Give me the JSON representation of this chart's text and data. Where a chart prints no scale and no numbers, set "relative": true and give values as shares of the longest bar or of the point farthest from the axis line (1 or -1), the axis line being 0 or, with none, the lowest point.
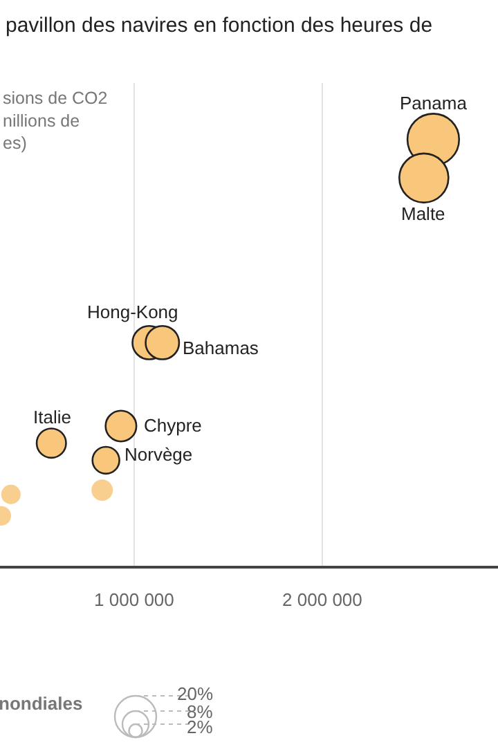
{
  "chart_data": {
    "type": "bubble",
    "title": "pavillon des navires en fonction des heures de",
    "ylabel": "sions de CO2\nnillions de\nes)",
    "legend_title": "nondiales",
    "relative": true,
    "xlim": [
      287000,
      2934000
    ],
    "xticks": [
      {
        "value": 1000000,
        "label": "1 000 000"
      },
      {
        "value": 2000000,
        "label": "2 000 000"
      }
    ],
    "grid": "x",
    "size_legend": [
      {
        "value": 20,
        "label": "20%"
      },
      {
        "value": 8,
        "label": "8%"
      },
      {
        "value": 2,
        "label": "2%"
      }
    ],
    "series": [
      {
        "color": "#f8c77b",
        "line_style": "solid",
        "x": [
          2590000,
          2540000,
          1080000,
          1150000,
          560000,
          930000,
          850000
        ],
        "values": [
          1.0,
          0.91,
          0.525,
          0.525,
          0.29,
          0.33,
          0.25
        ],
        "sizes": [
          31,
          28,
          13,
          13,
          10,
          11,
          8.4
        ]
      },
      {
        "color": "#f8c77b",
        "x": [
          830000,
          345000,
          294000
        ],
        "values": [
          0.18,
          0.17,
          0.12
        ],
        "sizes": [
          5.3,
          4.4,
          4.4
        ]
      }
    ],
    "annotations": [
      {
        "text": "Panama",
        "x": 2590000,
        "y": 1.0
      },
      {
        "text": "Malte",
        "x": 2540000,
        "y": 0.91
      },
      {
        "text": "Hong-Kong",
        "x": 1080000,
        "y": 0.525
      },
      {
        "text": "Bahamas",
        "x": 1150000,
        "y": 0.525
      },
      {
        "text": "Italie",
        "x": 560000,
        "y": 0.29
      },
      {
        "text": "Chypre",
        "x": 930000,
        "y": 0.33
      },
      {
        "text": "Norvège",
        "x": 850000,
        "y": 0.25
      }
    ]
  }
}
